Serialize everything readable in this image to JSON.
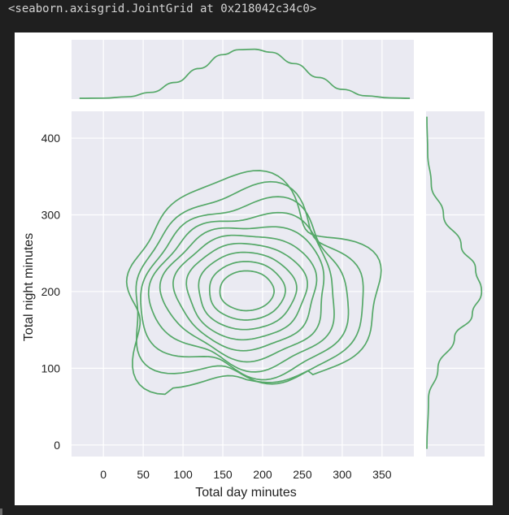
{
  "output_text": "<seaborn.axisgrid.JointGrid at 0x218042c34c0>",
  "colors": {
    "page_background": "#1f1f1f",
    "figure_background": "#ffffff",
    "axes_background": "#eaeaf2",
    "grid": "#ffffff",
    "series": "#55a868"
  },
  "chart_data": {
    "type": "kde-joint",
    "xlabel": "Total day minutes",
    "ylabel": "Total night minutes",
    "xlim": [
      -40,
      390
    ],
    "ylim": [
      -15,
      435
    ],
    "xticks": [
      0,
      50,
      100,
      150,
      200,
      250,
      300,
      350
    ],
    "yticks": [
      0,
      100,
      200,
      300,
      400
    ],
    "grid": true,
    "center": [
      180,
      201
    ],
    "contour_levels": 10,
    "marginal_x": {
      "x": [
        -30,
        0,
        30,
        60,
        90,
        120,
        150,
        170,
        190,
        210,
        240,
        270,
        300,
        330,
        360,
        385
      ],
      "density": [
        0.0,
        0.003,
        0.03,
        0.12,
        0.32,
        0.6,
        0.88,
        0.98,
        0.99,
        0.93,
        0.7,
        0.42,
        0.18,
        0.05,
        0.008,
        0.0
      ]
    },
    "marginal_y": {
      "y": [
        -5,
        60,
        100,
        140,
        170,
        200,
        230,
        260,
        300,
        340,
        380,
        428
      ],
      "density": [
        0.0,
        0.03,
        0.2,
        0.5,
        0.82,
        0.99,
        0.88,
        0.62,
        0.3,
        0.08,
        0.015,
        0.0
      ]
    }
  }
}
